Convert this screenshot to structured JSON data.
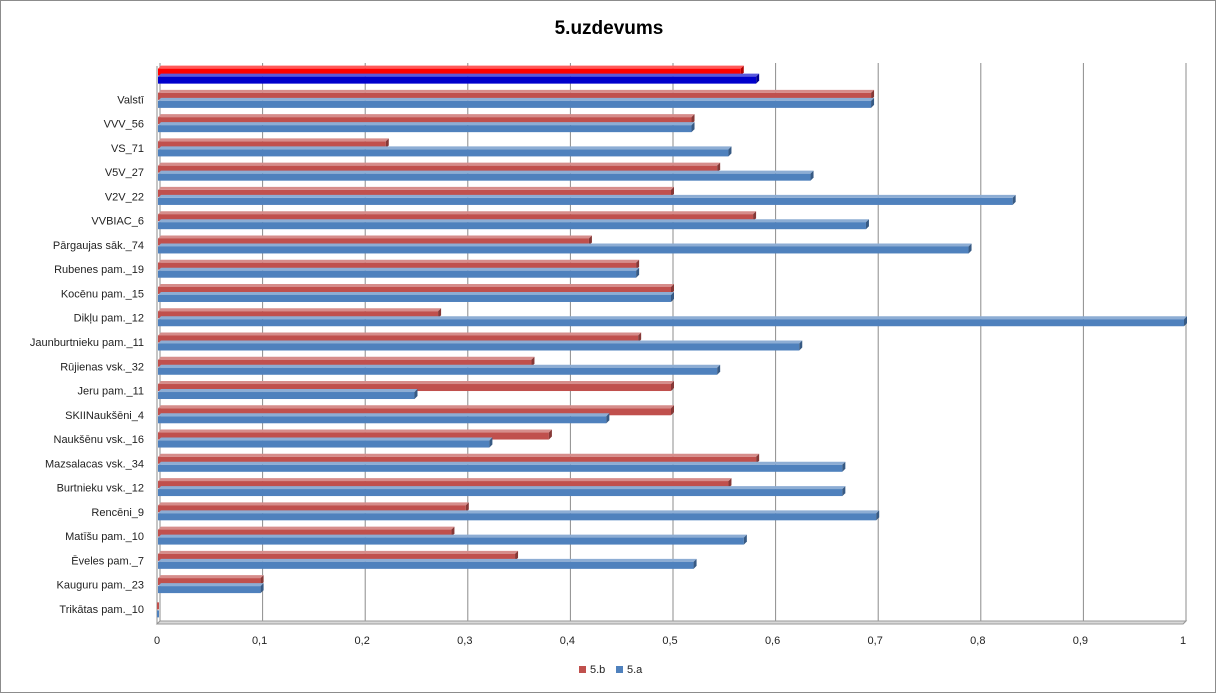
{
  "chart_data": {
    "type": "bar",
    "orientation": "horizontal",
    "title": "5.uzdevums",
    "xlabel": "",
    "ylabel": "",
    "xlim": [
      0,
      1
    ],
    "x_ticks": [
      "0",
      "0,1",
      "0,2",
      "0,3",
      "0,4",
      "0,5",
      "0,6",
      "0,7",
      "0,8",
      "0,9",
      "1"
    ],
    "grid": "vertical",
    "legend_position": "bottom",
    "categories": [
      "Trikātas pam._10",
      "Kauguru pam._23",
      "Ēveles pam._7",
      "Matīšu pam._10",
      "Rencēni_9",
      "Burtnieku vsk._12",
      "Mazsalacas vsk._34",
      "Naukšēnu vsk._16",
      "SKIINaukšēni_4",
      "Jeru pam._11",
      "Rūjienas vsk._32",
      "Jaunburtnieku pam._11",
      "Dikļu pam._12",
      "Kocēnu pam._15",
      "Rubenes pam._19",
      "Pārgaujas sāk._74",
      "VVBIAC_6",
      "V2V_22",
      "V5V_27",
      "VS_71",
      "VVV_56",
      "Valstī",
      ""
    ],
    "series": [
      {
        "name": "5.b",
        "color": "#C0504D",
        "values": [
          0,
          0.1,
          0.348,
          0.286,
          0.3,
          0.556,
          0.583,
          0.381,
          0.5,
          0.5,
          0.364,
          0.468,
          0.273,
          0.5,
          0.466,
          0.42,
          0.58,
          0.5,
          0.545,
          0.222,
          0.52,
          0.695,
          0.568
        ]
      },
      {
        "name": "5.a",
        "color": "#4F81BD",
        "values": [
          0,
          0.1,
          0.522,
          0.571,
          0.7,
          0.667,
          0.667,
          0.323,
          0.437,
          0.25,
          0.545,
          0.625,
          1.0,
          0.5,
          0.466,
          0.79,
          0.69,
          0.833,
          0.636,
          0.556,
          0.52,
          0.695,
          0.583
        ]
      }
    ],
    "highlight_last_category_colors": [
      "#FF0000",
      "#0000CC"
    ]
  }
}
